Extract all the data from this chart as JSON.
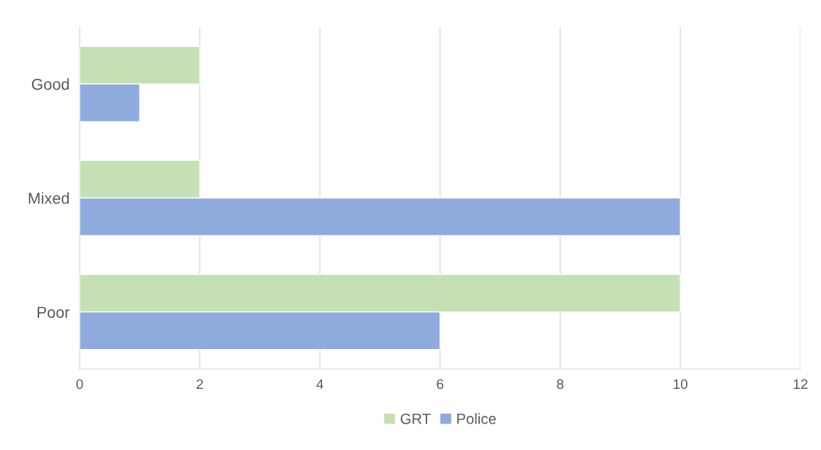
{
  "chart_data": {
    "type": "bar",
    "orientation": "horizontal",
    "categories": [
      "Good",
      "Mixed",
      "Poor"
    ],
    "series": [
      {
        "name": "GRT",
        "color": "#c5e0b4",
        "values": [
          2,
          2,
          10
        ]
      },
      {
        "name": "Police",
        "color": "#8faadc",
        "values": [
          1,
          10,
          6
        ]
      }
    ],
    "xlim": [
      0,
      12
    ],
    "xticks": [
      0,
      2,
      4,
      6,
      8,
      10,
      12
    ],
    "grid": "x",
    "legend": "bottom"
  }
}
